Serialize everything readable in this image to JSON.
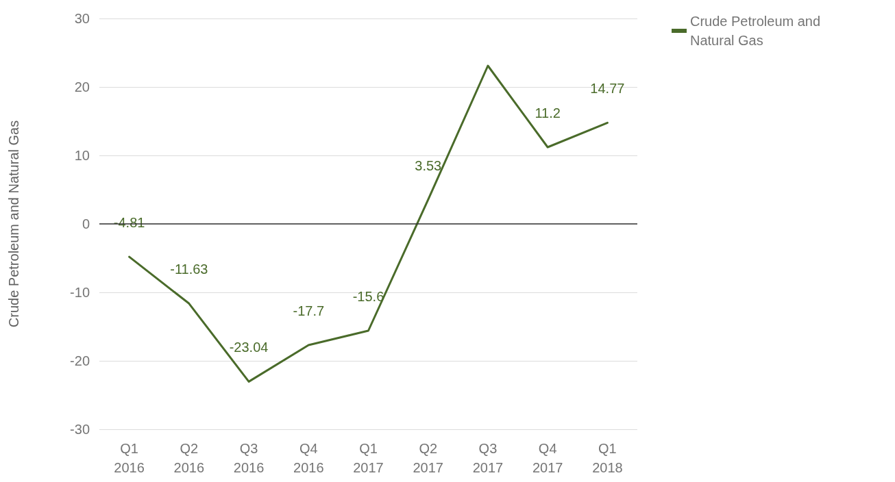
{
  "chart_data": {
    "type": "line",
    "ylabel": "Crude Petroleum and Natural Gas",
    "categories": [
      "Q1\n2016",
      "Q2\n2016",
      "Q3\n2016",
      "Q4\n2016",
      "Q1\n2017",
      "Q2\n2017",
      "Q3\n2017",
      "Q4\n2017",
      "Q1\n2018"
    ],
    "series": [
      {
        "name": "Crude Petroleum and Natural Gas",
        "color": "#4a6b2a",
        "values": [
          -4.81,
          -11.63,
          -23.04,
          -17.7,
          -15.6,
          3.53,
          23.1,
          11.2,
          14.77
        ],
        "value_labels": [
          "-4.81",
          "-11.63",
          "-23.04",
          "-17.7",
          "-15.6",
          "3.53",
          null,
          "11.2",
          "14.77"
        ]
      }
    ],
    "ylim": [
      -30,
      30
    ],
    "yticks": [
      -30,
      -20,
      -10,
      0,
      10,
      20,
      30
    ],
    "grid": "y",
    "legend": "top right",
    "marker": "none",
    "line_style": "solid"
  }
}
